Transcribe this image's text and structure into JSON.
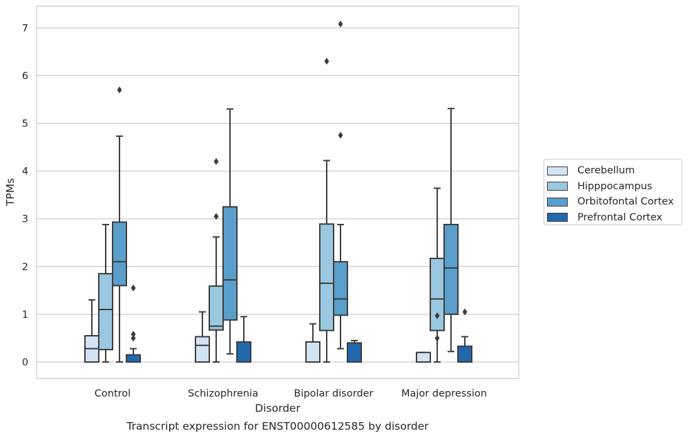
{
  "chart_data": {
    "type": "box",
    "xlabel": "Disorder",
    "ylabel": "TPMs",
    "caption": "Transcript expression for ENST00000612585 by disorder",
    "ylim": [
      -0.35,
      7.45
    ],
    "yticks": [
      0,
      1,
      2,
      3,
      4,
      5,
      6,
      7
    ],
    "grid": "horizontal",
    "legend_position": "right",
    "categories": [
      "Control",
      "Schizophrenia",
      "Bipolar disorder",
      "Major depression"
    ],
    "series": [
      {
        "name": "Cerebellum",
        "color": "#d2e3f3",
        "boxes": [
          {
            "whislo": 0.0,
            "q1": 0.0,
            "med": 0.28,
            "q3": 0.55,
            "whishi": 1.3,
            "fliers": []
          },
          {
            "whislo": 0.0,
            "q1": 0.0,
            "med": 0.35,
            "q3": 0.53,
            "whishi": 1.05,
            "fliers": []
          },
          {
            "whislo": 0.0,
            "q1": 0.0,
            "med": 0.0,
            "q3": 0.42,
            "whishi": 0.8,
            "fliers": []
          },
          {
            "whislo": 0.0,
            "q1": 0.0,
            "med": 0.0,
            "q3": 0.2,
            "whishi": 0.2,
            "fliers": []
          }
        ]
      },
      {
        "name": "Hipppocampus",
        "color": "#9ac8e0",
        "boxes": [
          {
            "whislo": 0.0,
            "q1": 0.26,
            "med": 1.1,
            "q3": 1.85,
            "whishi": 2.88,
            "fliers": []
          },
          {
            "whislo": 0.0,
            "q1": 0.67,
            "med": 0.75,
            "q3": 1.59,
            "whishi": 2.62,
            "fliers": [
              3.05,
              4.2
            ]
          },
          {
            "whislo": 0.0,
            "q1": 0.66,
            "med": 1.65,
            "q3": 2.89,
            "whishi": 4.22,
            "fliers": [
              6.3
            ]
          },
          {
            "whislo": 0.0,
            "q1": 0.66,
            "med": 1.32,
            "q3": 2.17,
            "whishi": 3.64,
            "fliers": [
              0.5,
              0.97
            ]
          }
        ]
      },
      {
        "name": "Orbitofontal Cortex",
        "color": "#5a9ecc",
        "boxes": [
          {
            "whislo": 0.0,
            "q1": 1.6,
            "med": 2.1,
            "q3": 2.93,
            "whishi": 4.73,
            "fliers": [
              5.7
            ]
          },
          {
            "whislo": 0.17,
            "q1": 0.88,
            "med": 1.72,
            "q3": 3.25,
            "whishi": 5.3,
            "fliers": []
          },
          {
            "whislo": 0.28,
            "q1": 0.98,
            "med": 1.32,
            "q3": 2.1,
            "whishi": 2.88,
            "fliers": [
              4.75,
              7.08
            ]
          },
          {
            "whislo": 0.22,
            "q1": 1.0,
            "med": 1.97,
            "q3": 2.88,
            "whishi": 5.31,
            "fliers": []
          }
        ]
      },
      {
        "name": "Prefrontal Cortex",
        "color": "#2268ad",
        "boxes": [
          {
            "whislo": 0.0,
            "q1": 0.0,
            "med": 0.0,
            "q3": 0.15,
            "whishi": 0.28,
            "fliers": [
              0.5,
              0.58,
              1.55
            ]
          },
          {
            "whislo": 0.0,
            "q1": 0.0,
            "med": 0.0,
            "q3": 0.42,
            "whishi": 0.95,
            "fliers": []
          },
          {
            "whislo": 0.0,
            "q1": 0.0,
            "med": 0.0,
            "q3": 0.4,
            "whishi": 0.45,
            "fliers": []
          },
          {
            "whislo": 0.0,
            "q1": 0.0,
            "med": 0.0,
            "q3": 0.33,
            "whishi": 0.53,
            "fliers": [
              1.05
            ]
          }
        ]
      }
    ]
  }
}
